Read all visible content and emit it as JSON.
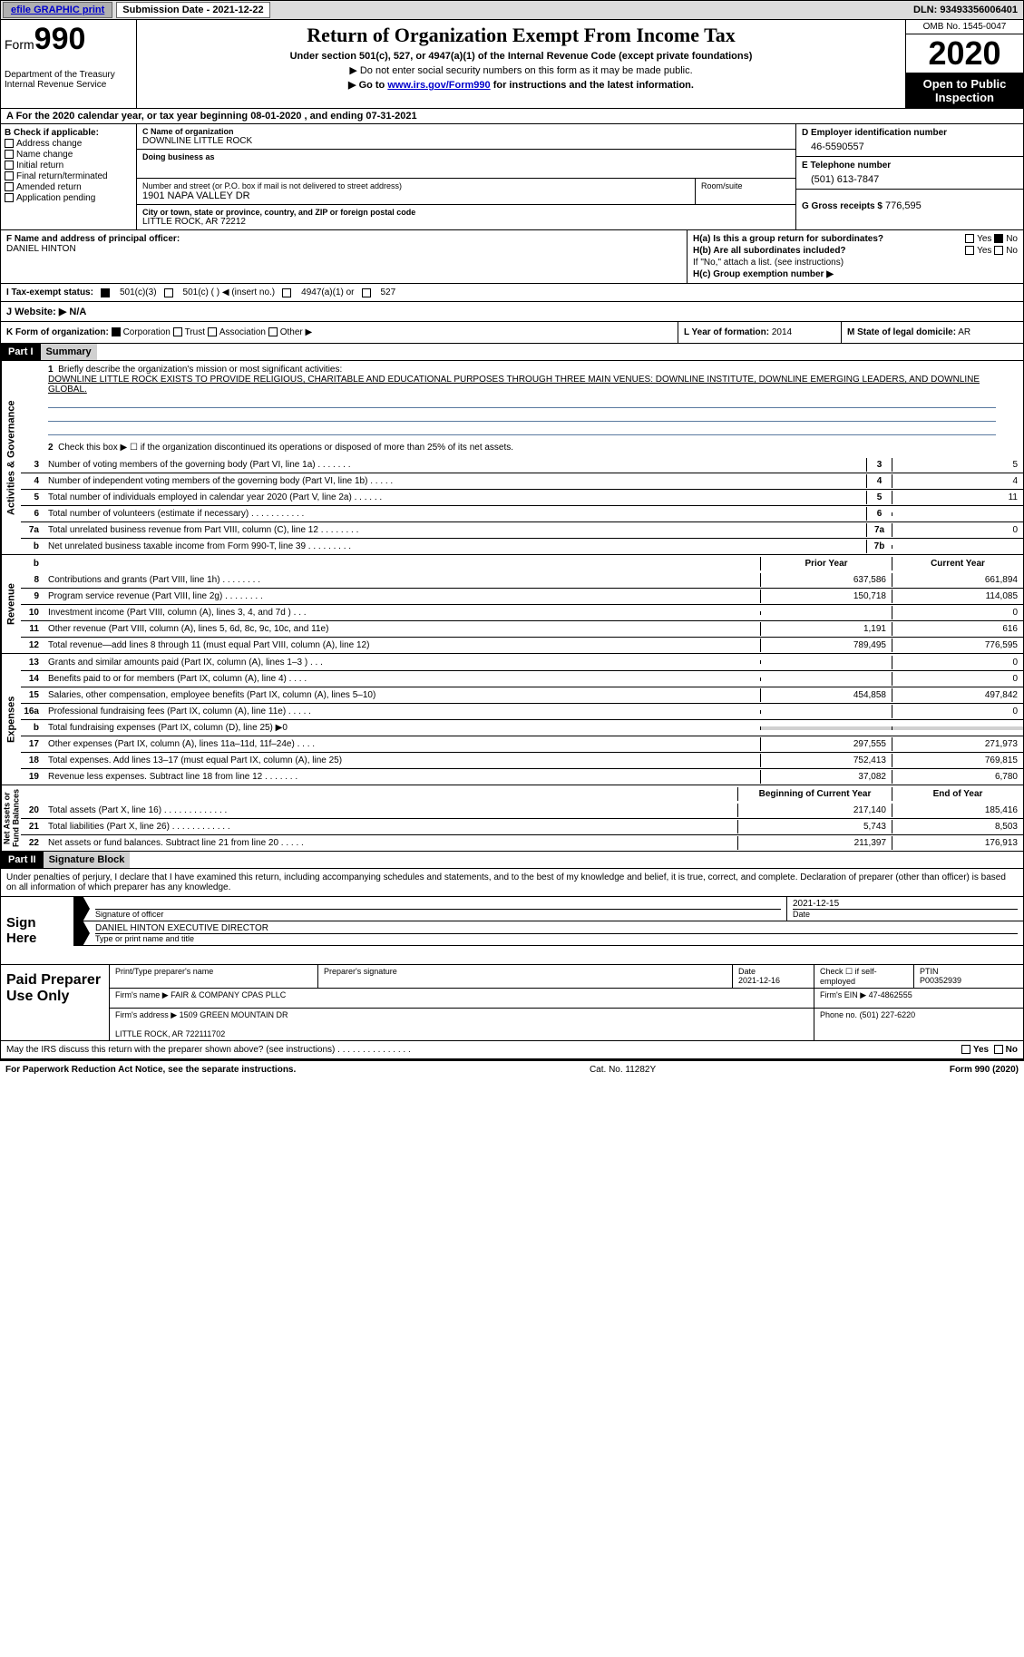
{
  "topbar": {
    "efile_link": "efile GRAPHIC print",
    "sub_label": "Submission Date - 2021-12-22",
    "dln": "DLN: 93493356006401"
  },
  "header": {
    "form_word": "Form",
    "form_no": "990",
    "dept": "Department of the Treasury\nInternal Revenue Service",
    "title": "Return of Organization Exempt From Income Tax",
    "sub": "Under section 501(c), 527, or 4947(a)(1) of the Internal Revenue Code (except private foundations)",
    "line1": "▶ Do not enter social security numbers on this form as it may be made public.",
    "line2_pre": "▶ Go to ",
    "line2_link": "www.irs.gov/Form990",
    "line2_post": " for instructions and the latest information.",
    "omb": "OMB No. 1545-0047",
    "year": "2020",
    "inspect": "Open to Public\nInspection"
  },
  "rowA": "A For the 2020 calendar year, or tax year beginning 08-01-2020   , and ending 07-31-2021",
  "B": {
    "hd": "B Check if applicable:",
    "opts": [
      "Address change",
      "Name change",
      "Initial return",
      "Final return/terminated",
      "Amended return",
      "Application pending"
    ]
  },
  "C": {
    "name_lab": "C Name of organization",
    "name_val": "DOWNLINE LITTLE ROCK",
    "dba_lab": "Doing business as",
    "dba_val": "",
    "addr_lab": "Number and street (or P.O. box if mail is not delivered to street address)",
    "room_lab": "Room/suite",
    "addr_val": "1901 NAPA VALLEY DR",
    "city_lab": "City or town, state or province, country, and ZIP or foreign postal code",
    "city_val": "LITTLE ROCK, AR   72212"
  },
  "D": {
    "ein_lab": "D Employer identification number",
    "ein_val": "46-5590557",
    "tel_lab": "E Telephone number",
    "tel_val": "(501) 613-7847",
    "gross_lab": "G Gross receipts $",
    "gross_val": "776,595"
  },
  "F": {
    "lab": "F  Name and address of principal officer:",
    "val": "DANIEL HINTON"
  },
  "H": {
    "a_lab": "H(a)  Is this a group return for subordinates?",
    "b_lab": "H(b)  Are all subordinates included?",
    "b_note": "If \"No,\" attach a list. (see instructions)",
    "c_lab": "H(c)  Group exemption number ▶",
    "yes": "Yes",
    "no": "No"
  },
  "I": {
    "lab": "I   Tax-exempt status:",
    "o1": "501(c)(3)",
    "o2": "501(c) (   ) ◀ (insert no.)",
    "o3": "4947(a)(1) or",
    "o4": "527"
  },
  "J": {
    "lab": "J   Website: ▶",
    "val": "N/A"
  },
  "K": {
    "lab": "K Form of organization:",
    "o1": "Corporation",
    "o2": "Trust",
    "o3": "Association",
    "o4": "Other ▶"
  },
  "L": {
    "lab": "L Year of formation:",
    "val": "2014"
  },
  "M": {
    "lab": "M State of legal domicile:",
    "val": "AR"
  },
  "part1": {
    "hdr": "Part I",
    "title": "Summary",
    "l1_lab": "Briefly describe the organization's mission or most significant activities:",
    "l1_val": "DOWNLINE LITTLE ROCK EXISTS TO PROVIDE RELIGIOUS, CHARITABLE AND EDUCATIONAL PURPOSES THROUGH THREE MAIN VENUES: DOWNLINE INSTITUTE, DOWNLINE EMERGING LEADERS, AND DOWNLINE GLOBAL.",
    "l2": "Check this box ▶ ☐  if the organization discontinued its operations or disposed of more than 25% of its net assets.",
    "tabs": {
      "gov": "Activities & Governance",
      "rev": "Revenue",
      "exp": "Expenses",
      "net": "Net Assets or\nFund Balances"
    },
    "prior_hdr": "Prior Year",
    "curr_hdr": "Current Year",
    "boy_hdr": "Beginning of Current Year",
    "eoy_hdr": "End of Year",
    "gov_lines": [
      {
        "n": "3",
        "t": "Number of voting members of the governing body (Part VI, line 1a)   .    .    .    .    .    .    .",
        "k": "3",
        "v": "5"
      },
      {
        "n": "4",
        "t": "Number of independent voting members of the governing body (Part VI, line 1b)   .    .    .    .    .",
        "k": "4",
        "v": "4"
      },
      {
        "n": "5",
        "t": "Total number of individuals employed in calendar year 2020 (Part V, line 2a)   .    .    .    .    .    .",
        "k": "5",
        "v": "11"
      },
      {
        "n": "6",
        "t": "Total number of volunteers (estimate if necessary)   .    .    .    .    .    .    .    .    .    .    .",
        "k": "6",
        "v": ""
      },
      {
        "n": "7a",
        "t": "Total unrelated business revenue from Part VIII, column (C), line 12   .    .    .    .    .    .    .    .",
        "k": "7a",
        "v": "0"
      },
      {
        "n": "b",
        "t": "Net unrelated business taxable income from Form 990-T, line 39   .    .    .    .    .    .    .    .    .",
        "k": "7b",
        "v": ""
      }
    ],
    "rev_lines": [
      {
        "n": "8",
        "t": "Contributions and grants (Part VIII, line 1h)   .    .    .    .    .    .    .    .",
        "p": "637,586",
        "c": "661,894"
      },
      {
        "n": "9",
        "t": "Program service revenue (Part VIII, line 2g)   .    .    .    .    .    .    .    .",
        "p": "150,718",
        "c": "114,085"
      },
      {
        "n": "10",
        "t": "Investment income (Part VIII, column (A), lines 3, 4, and 7d )   .    .    .",
        "p": "",
        "c": "0"
      },
      {
        "n": "11",
        "t": "Other revenue (Part VIII, column (A), lines 5, 6d, 8c, 9c, 10c, and 11e)",
        "p": "1,191",
        "c": "616"
      },
      {
        "n": "12",
        "t": "Total revenue—add lines 8 through 11 (must equal Part VIII, column (A), line 12)",
        "p": "789,495",
        "c": "776,595"
      }
    ],
    "exp_lines": [
      {
        "n": "13",
        "t": "Grants and similar amounts paid (Part IX, column (A), lines 1–3 )   .    .    .",
        "p": "",
        "c": "0"
      },
      {
        "n": "14",
        "t": "Benefits paid to or for members (Part IX, column (A), line 4)   .    .    .    .",
        "p": "",
        "c": "0"
      },
      {
        "n": "15",
        "t": "Salaries, other compensation, employee benefits (Part IX, column (A), lines 5–10)",
        "p": "454,858",
        "c": "497,842"
      },
      {
        "n": "16a",
        "t": "Professional fundraising fees (Part IX, column (A), line 11e)   .    .    .    .    .",
        "p": "",
        "c": "0"
      },
      {
        "n": "b",
        "t": "Total fundraising expenses (Part IX, column (D), line 25) ▶0",
        "p": "SHADE",
        "c": "SHADE"
      },
      {
        "n": "17",
        "t": "Other expenses (Part IX, column (A), lines 11a–11d, 11f–24e)   .    .    .    .",
        "p": "297,555",
        "c": "271,973"
      },
      {
        "n": "18",
        "t": "Total expenses. Add lines 13–17 (must equal Part IX, column (A), line 25)",
        "p": "752,413",
        "c": "769,815"
      },
      {
        "n": "19",
        "t": "Revenue less expenses. Subtract line 18 from line 12   .    .    .    .    .    .    .",
        "p": "37,082",
        "c": "6,780"
      }
    ],
    "net_lines": [
      {
        "n": "20",
        "t": "Total assets (Part X, line 16)   .    .    .    .    .    .    .    .    .    .    .    .    .",
        "p": "217,140",
        "c": "185,416"
      },
      {
        "n": "21",
        "t": "Total liabilities (Part X, line 26)   .    .    .    .    .    .    .    .    .    .    .    .",
        "p": "5,743",
        "c": "8,503"
      },
      {
        "n": "22",
        "t": "Net assets or fund balances. Subtract line 21 from line 20   .    .    .    .    .",
        "p": "211,397",
        "c": "176,913"
      }
    ]
  },
  "part2": {
    "hdr": "Part II",
    "title": "Signature Block",
    "decl": "Under penalties of perjury, I declare that I have examined this return, including accompanying schedules and statements, and to the best of my knowledge and belief, it is true, correct, and complete. Declaration of preparer (other than officer) is based on all information of which preparer has any knowledge.",
    "sign_here": "Sign Here",
    "sig_officer": "Signature of officer",
    "sig_date_lab": "Date",
    "sig_date": "2021-12-15",
    "name_title": "DANIEL HINTON  EXECUTIVE DIRECTOR",
    "name_title_lab": "Type or print name and title",
    "paid": "Paid Preparer Use Only",
    "prep_name_lab": "Print/Type preparer's name",
    "prep_sig_lab": "Preparer's signature",
    "prep_date_lab": "Date",
    "prep_date": "2021-12-16",
    "self_lab": "Check ☐ if self-employed",
    "ptin_lab": "PTIN",
    "ptin": "P00352939",
    "firm_name_lab": "Firm's name      ▶",
    "firm_name": "FAIR & COMPANY CPAS PLLC",
    "firm_ein_lab": "Firm's EIN ▶",
    "firm_ein": "47-4862555",
    "firm_addr_lab": "Firm's address ▶",
    "firm_addr": "1509 GREEN MOUNTAIN DR\n\nLITTLE ROCK, AR   722111702",
    "phone_lab": "Phone no.",
    "phone": "(501) 227-6220",
    "discuss": "May the IRS discuss this return with the preparer shown above? (see instructions)   .    .    .    .    .    .    .    .    .    .    .    .    .    .    .",
    "yes": "Yes",
    "no": "No"
  },
  "footer": {
    "notice": "For Paperwork Reduction Act Notice, see the separate instructions.",
    "catno": "Cat. No. 11282Y",
    "form": "Form 990 (2020)"
  }
}
